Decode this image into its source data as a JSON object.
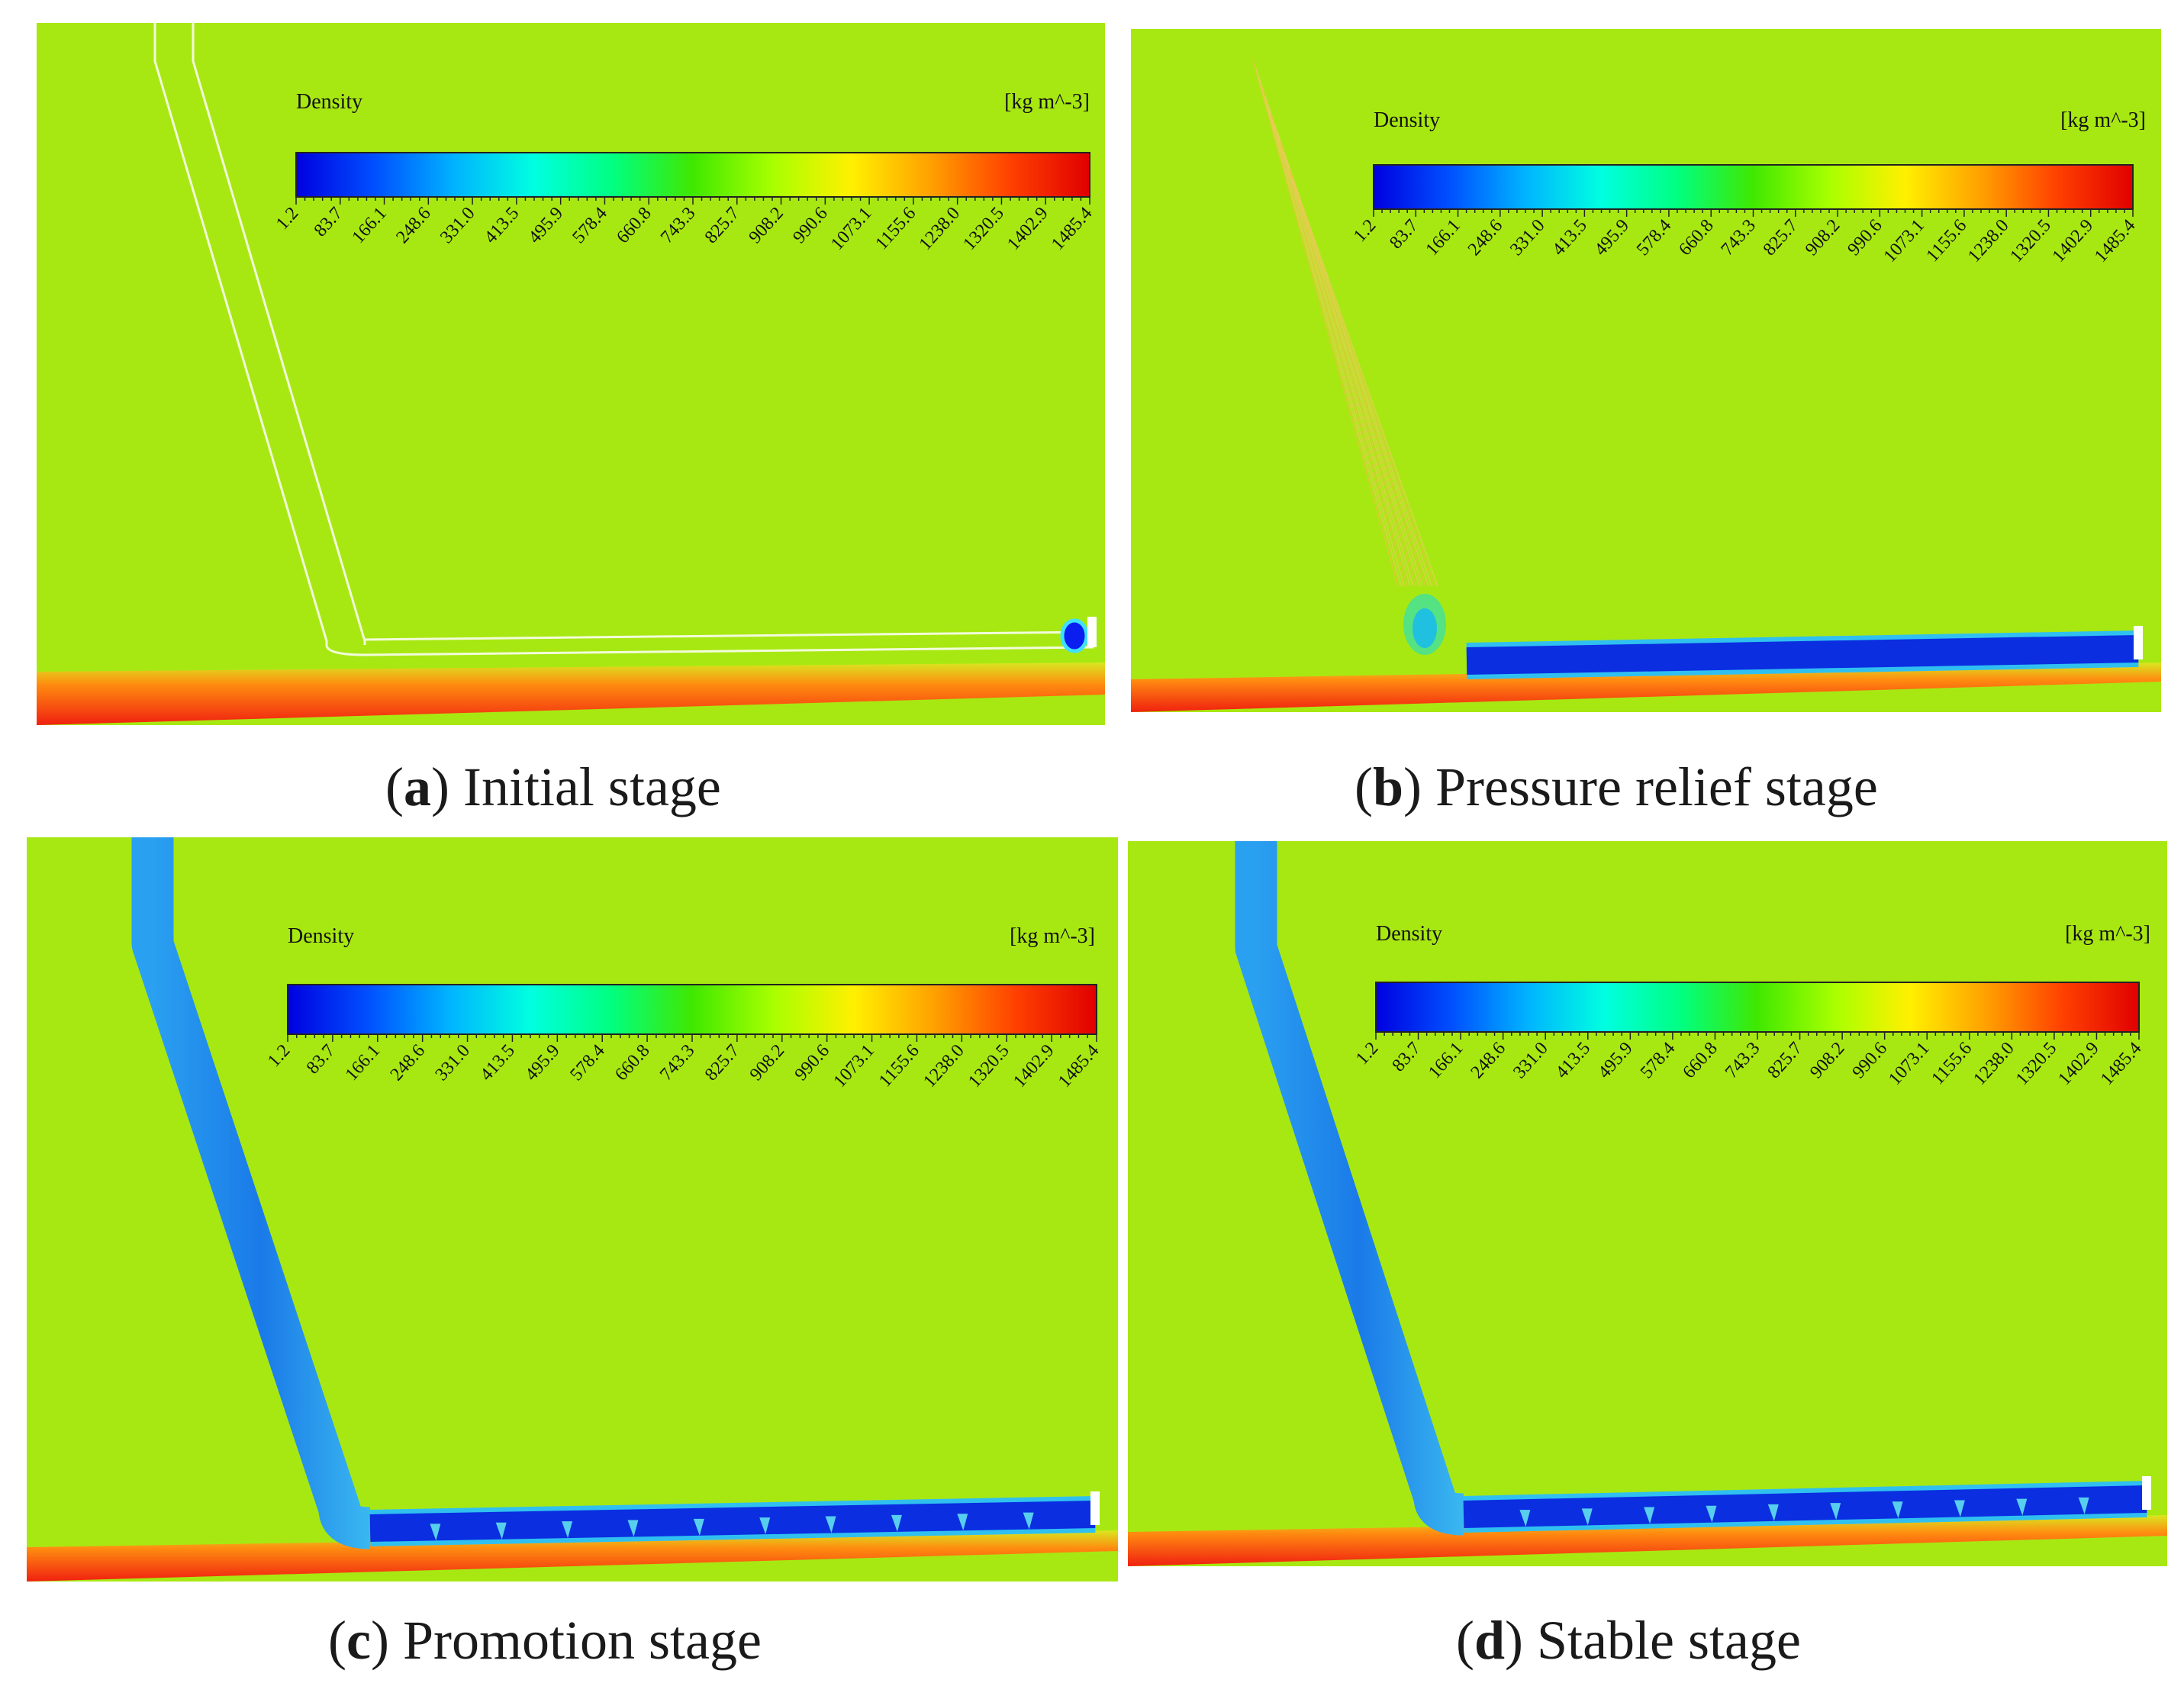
{
  "colorbar": {
    "title": "Density",
    "units": "[kg m^-3]",
    "ticks": [
      "1.2",
      "83.7",
      "166.1",
      "248.6",
      "331.0",
      "413.5",
      "495.9",
      "578.4",
      "660.8",
      "743.3",
      "825.7",
      "908.2",
      "990.6",
      "1073.1",
      "1155.6",
      "1238.0",
      "1320.5",
      "1402.9",
      "1485.4"
    ],
    "colors": [
      "#0000e0",
      "#0050ff",
      "#00b4ff",
      "#00ffe0",
      "#00ff80",
      "#40e800",
      "#a8ff00",
      "#fff000",
      "#ffa000",
      "#ff4000",
      "#e00000"
    ]
  },
  "colors": {
    "field": "#a8e812",
    "channel_dark": "#0a2ee0",
    "channel_light": "#1a7ae8",
    "floor_red": "#f02010",
    "floor_orange": "#ff8c10"
  },
  "panels": [
    {
      "id": "a",
      "letter": "a",
      "label": "Initial stage",
      "state": "initial"
    },
    {
      "id": "b",
      "letter": "b",
      "label": "Pressure relief stage",
      "state": "relief"
    },
    {
      "id": "c",
      "letter": "c",
      "label": "Promotion stage",
      "state": "promotion"
    },
    {
      "id": "d",
      "letter": "d",
      "label": "Stable stage",
      "state": "stable"
    }
  ]
}
